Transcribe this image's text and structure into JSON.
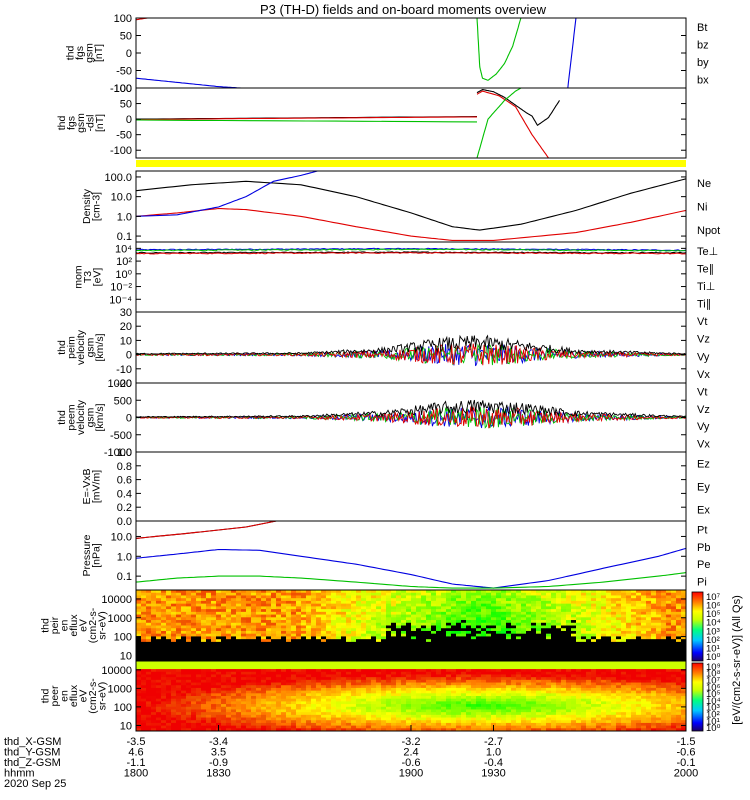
{
  "title": "P3 (TH-D) fields and on-board moments overview",
  "colors": {
    "black": "#000000",
    "red": "#e00000",
    "green": "#00c000",
    "blue": "#0000e0",
    "yellow": "#ffff00"
  },
  "chart_data": [
    {
      "type": "line",
      "panel": "fgs-gsm",
      "ylabel": [
        "thd",
        "fgs",
        "gsm",
        "[nT]"
      ],
      "ylim": [
        -100,
        100
      ],
      "yticks": [
        "100",
        "50",
        "0",
        "-50",
        "-100"
      ],
      "legend": [
        {
          "name": "Bt",
          "color": "#000000"
        },
        {
          "name": "bz",
          "color": "#e00000"
        },
        {
          "name": "by",
          "color": "#00c000"
        },
        {
          "name": "bx",
          "color": "#0000e0"
        }
      ],
      "series": [
        {
          "name": "bz",
          "color": "#e00000",
          "x": [
            1800,
            1805
          ],
          "y": [
            95,
            101
          ]
        },
        {
          "name": "bx",
          "color": "#0000e0",
          "x": [
            1800,
            1810,
            1820,
            1830,
            1840
          ],
          "y": [
            -72,
            -80,
            -88,
            -96,
            -101
          ]
        },
        {
          "name": "by",
          "color": "#00c000",
          "x": [
            1924,
            1925,
            1926,
            1928,
            1931,
            1934,
            1937,
            1940
          ],
          "y": [
            101,
            -40,
            -72,
            -78,
            -60,
            -30,
            20,
            101
          ]
        },
        {
          "name": "bx",
          "color": "#0000e0",
          "x": [
            1957,
            1960
          ],
          "y": [
            -101,
            101
          ]
        }
      ]
    },
    {
      "type": "line",
      "panel": "fgs-gsm-dsl",
      "ylabel": [
        "thd",
        "fgs",
        "gsm",
        "-dsl",
        "[nT]"
      ],
      "ylim": [
        -125,
        100
      ],
      "yticks": [
        "100",
        "50",
        "0",
        "-50",
        "-100"
      ],
      "series": [
        {
          "name": "Bt",
          "color": "#000000",
          "x": [
            1800,
            1830,
            1860,
            1890,
            1924
          ],
          "y": [
            0,
            2,
            4,
            6,
            8
          ]
        },
        {
          "name": "bz",
          "color": "#e00000",
          "x": [
            1800,
            1830,
            1860,
            1890,
            1924
          ],
          "y": [
            -2,
            1,
            3,
            5,
            7
          ]
        },
        {
          "name": "by",
          "color": "#00c000",
          "x": [
            1800,
            1924
          ],
          "y": [
            -3,
            -9
          ]
        },
        {
          "name": "Bt",
          "color": "#000000",
          "x": [
            1924,
            1926,
            1930,
            1934,
            1938,
            1942,
            1944,
            1946,
            1950,
            1954
          ],
          "y": [
            85,
            95,
            88,
            70,
            45,
            20,
            10,
            -20,
            5,
            60
          ]
        },
        {
          "name": "bz",
          "color": "#e00000",
          "x": [
            1924,
            1926,
            1932,
            1938,
            1944,
            1950
          ],
          "y": [
            80,
            90,
            75,
            40,
            -50,
            -125
          ]
        },
        {
          "name": "by",
          "color": "#00c000",
          "x": [
            1924,
            1928,
            1934,
            1938,
            1940
          ],
          "y": [
            -125,
            0,
            60,
            90,
            100
          ]
        }
      ]
    },
    {
      "type": "line",
      "panel": "density",
      "yscale": "log",
      "ylabel": [
        "Density",
        "[cm-3]"
      ],
      "ylim": [
        0.05,
        200
      ],
      "yticks": [
        "100.0",
        "10.0",
        "1.0",
        "0.1"
      ],
      "legend": [
        {
          "name": "Ne",
          "color": "#e00000"
        },
        {
          "name": "Ni",
          "color": "#000000"
        },
        {
          "name": "Npot",
          "color": "#0000e0"
        }
      ],
      "series": [
        {
          "name": "Ni",
          "color": "#000000",
          "x": [
            1800,
            1820,
            1840,
            1860,
            1880,
            1900,
            1915,
            1925,
            1940,
            1960,
            1980,
            2000
          ],
          "y": [
            20,
            40,
            60,
            40,
            10,
            1.5,
            0.3,
            0.2,
            0.4,
            2,
            15,
            80
          ]
        },
        {
          "name": "Ne",
          "color": "#e00000",
          "x": [
            1800,
            1815,
            1830,
            1840,
            1860,
            1880,
            1900,
            1915,
            1930,
            1960,
            1980,
            2000
          ],
          "y": [
            1,
            1.5,
            2.5,
            2.2,
            1,
            0.3,
            0.1,
            0.06,
            0.06,
            0.15,
            0.5,
            2
          ]
        },
        {
          "name": "Npot",
          "color": "#0000e0",
          "x": [
            1800,
            1815,
            1830,
            1840,
            1850,
            1860,
            1866
          ],
          "y": [
            1,
            1.2,
            3,
            10,
            60,
            120,
            200
          ]
        }
      ]
    },
    {
      "type": "line",
      "panel": "mom-temperature",
      "yscale": "log",
      "ylabel": [
        "mom",
        "T3",
        "[eV]"
      ],
      "ylim": [
        1e-06,
        100000
      ],
      "yticks": [
        "10⁴",
        "10²",
        "10⁰",
        "10⁻²",
        "10⁻⁴"
      ],
      "legend": [
        {
          "name": "Te⊥",
          "color": "#e00000"
        },
        {
          "name": "Te∥",
          "color": "#000000"
        },
        {
          "name": "Ti⊥",
          "color": "#0000e0"
        },
        {
          "name": "Ti∥",
          "color": "#00c000"
        }
      ],
      "series": [
        {
          "name": "Ti⊥",
          "color": "#0000e0",
          "x": [
            1800,
            1900,
            2000
          ],
          "y": [
            6000,
            9000,
            5000
          ]
        },
        {
          "name": "Ti∥",
          "color": "#00c000",
          "x": [
            1800,
            1900,
            2000
          ],
          "y": [
            4500,
            7000,
            4000
          ]
        },
        {
          "name": "Te∥",
          "color": "#000000",
          "x": [
            1800,
            1900,
            2000
          ],
          "y": [
            2000,
            2500,
            2000
          ]
        },
        {
          "name": "Te⊥",
          "color": "#e00000",
          "x": [
            1800,
            1900,
            2000
          ],
          "y": [
            1500,
            2000,
            1500
          ]
        }
      ]
    },
    {
      "type": "line",
      "panel": "peim-velocity",
      "ylabel": [
        "thd",
        "peim",
        "velocity",
        "gsm",
        "[km/s]"
      ],
      "ylim": [
        -20,
        30
      ],
      "yticks": [
        "30",
        "20",
        "10",
        "0",
        "-10",
        "-20"
      ],
      "legend": [
        {
          "name": "Vt",
          "color": "#000000"
        },
        {
          "name": "Vz",
          "color": "#e00000"
        },
        {
          "name": "Vy",
          "color": "#00c000"
        },
        {
          "name": "Vx",
          "color": "#0000e0"
        }
      ],
      "noise_envelope": {
        "x": [
          1800,
          1860,
          1890,
          1910,
          1925,
          1940,
          1960,
          2000
        ],
        "amp": [
          1,
          1.5,
          5,
          12,
          14,
          10,
          4,
          1
        ]
      }
    },
    {
      "type": "line",
      "panel": "peem-velocity",
      "ylabel": [
        "thd",
        "peem",
        "velocity",
        "gsm",
        "[km/s]"
      ],
      "ylim": [
        -1000,
        1000
      ],
      "yticks": [
        "1000",
        "500",
        "0",
        "-500",
        "-1000"
      ],
      "legend": [
        {
          "name": "Vt",
          "color": "#000000"
        },
        {
          "name": "Vz",
          "color": "#e00000"
        },
        {
          "name": "Vy",
          "color": "#00c000"
        },
        {
          "name": "Vx",
          "color": "#0000e0"
        }
      ],
      "noise_envelope": {
        "x": [
          1800,
          1860,
          1890,
          1910,
          1925,
          1940,
          1960,
          2000
        ],
        "amp": [
          30,
          60,
          200,
          450,
          550,
          450,
          200,
          40
        ]
      }
    },
    {
      "type": "line",
      "panel": "efield",
      "ylabel": [
        "E=-VxB",
        "[mV/m]"
      ],
      "ylim": [
        0,
        1
      ],
      "yticks": [
        "1.0",
        "0.8",
        "0.6",
        "0.4",
        "0.2",
        "0.0"
      ],
      "legend": [
        {
          "name": "Ez",
          "color": "#e00000"
        },
        {
          "name": "Ey",
          "color": "#00c000"
        },
        {
          "name": "Ex",
          "color": "#0000e0"
        }
      ]
    },
    {
      "type": "line",
      "panel": "pressure",
      "yscale": "log",
      "ylabel": [
        "Pressure",
        "[nPa]"
      ],
      "ylim": [
        0.02,
        60
      ],
      "yticks": [
        "10.0",
        "1.0",
        "0.1"
      ],
      "legend": [
        {
          "name": "Pt",
          "color": "#000000"
        },
        {
          "name": "Pb",
          "color": "#e00000"
        },
        {
          "name": "Pe",
          "color": "#00c000"
        },
        {
          "name": "Pi",
          "color": "#0000e0"
        }
      ],
      "series": [
        {
          "name": "Pt",
          "color": "#000000",
          "x": [
            1800,
            1820,
            1840,
            1851
          ],
          "y": [
            8,
            15,
            30,
            60
          ]
        },
        {
          "name": "Pb",
          "color": "#e00000",
          "x": [
            1800,
            1820,
            1840,
            1851
          ],
          "y": [
            8,
            15,
            30,
            60
          ]
        },
        {
          "name": "Pi",
          "color": "#0000e0",
          "x": [
            1800,
            1815,
            1830,
            1845,
            1860,
            1880,
            1900,
            1915,
            1930,
            1950,
            1970,
            1990,
            2000
          ],
          "y": [
            0.8,
            1.3,
            2.2,
            2.0,
            1.0,
            0.4,
            0.12,
            0.04,
            0.025,
            0.06,
            0.25,
            1.0,
            2.5
          ]
        },
        {
          "name": "Pe",
          "color": "#00c000",
          "x": [
            1800,
            1815,
            1830,
            1845,
            1860,
            1880,
            1900,
            1915,
            1930,
            1950,
            1970,
            1990,
            2000
          ],
          "y": [
            0.05,
            0.08,
            0.1,
            0.1,
            0.08,
            0.05,
            0.03,
            0.025,
            0.025,
            0.03,
            0.05,
            0.1,
            0.15
          ]
        }
      ]
    },
    {
      "type": "heatmap",
      "panel": "peir-en-eflux",
      "yscale": "log",
      "ylabel": [
        "thd",
        "peir",
        "en",
        "eflux",
        "eV",
        "(cm2-s-",
        "sr-eV)"
      ],
      "ylim": [
        5,
        30000
      ],
      "yticks": [
        "10000",
        "1000",
        "100",
        "10"
      ]
    },
    {
      "type": "heatmap",
      "panel": "peer-en-eflux",
      "yscale": "log",
      "ylabel": [
        "thd",
        "peer",
        "en",
        "eflux",
        "eV",
        "(cm2-s-",
        "sr-eV)"
      ],
      "ylim": [
        5,
        30000
      ],
      "yticks": [
        "10000",
        "1000",
        "100",
        "10"
      ]
    }
  ],
  "colorbar": {
    "label": "[eV/(cm2-s-sr-eV)]  (All Qs)",
    "upper_ticks": [
      "10⁷",
      "10⁶",
      "10⁵",
      "10⁴",
      "10³",
      "10²",
      "10¹",
      "10⁰"
    ],
    "lower_ticks": [
      "10⁹",
      "10⁸",
      "10⁷",
      "10⁶",
      "10⁵",
      "10⁴",
      "10³",
      "10²",
      "10¹",
      "10⁰"
    ]
  },
  "xaxis": {
    "range": [
      1800,
      2000
    ],
    "row_labels": [
      "thd_X-GSM",
      "thd_Y-GSM",
      "thd_Z-GSM",
      "hhmm",
      "2020 Sep 25"
    ],
    "ticks": [
      {
        "x": 1800,
        "vals": [
          "-3.5",
          "4.6",
          "-1.1",
          "1800"
        ]
      },
      {
        "x": 1830,
        "vals": [
          "-3.4",
          "3.5",
          "-0.9",
          "1830"
        ]
      },
      {
        "x": 1900,
        "vals": [
          "-3.2",
          "2.4",
          "-0.6",
          "1900"
        ]
      },
      {
        "x": 1930,
        "vals": [
          "-2.7",
          "1.0",
          "-0.4",
          "1930"
        ]
      },
      {
        "x": 2000,
        "vals": [
          "-1.5",
          "-0.6",
          "-0.1",
          "2000"
        ]
      }
    ]
  }
}
